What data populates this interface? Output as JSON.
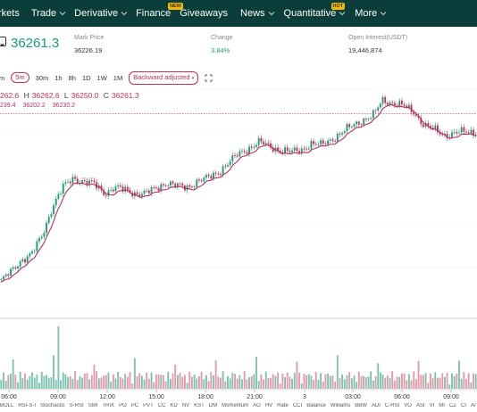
{
  "nav": {
    "items": [
      {
        "label": "rkets",
        "chevron": false,
        "badge": ""
      },
      {
        "label": "Trade",
        "chevron": true,
        "badge": ""
      },
      {
        "label": "Derivative",
        "chevron": true,
        "badge": ""
      },
      {
        "label": "Finance",
        "chevron": false,
        "badge": "NEW"
      },
      {
        "label": "Giveaways",
        "chevron": false,
        "badge": ""
      },
      {
        "label": "News",
        "chevron": true,
        "badge": ""
      },
      {
        "label": "Quantitative",
        "chevron": true,
        "badge": "HOT"
      },
      {
        "label": "More",
        "chevron": true,
        "badge": ""
      }
    ]
  },
  "ticker": {
    "price": "36261.3",
    "mark_price_label": "Mark Price",
    "mark_price": "36226.19",
    "change_label": "Change",
    "change": "3.84%",
    "open_interest_label": "Open Interest(USDT)",
    "open_interest": "19,446,874"
  },
  "toolbar": {
    "intervals": [
      "m",
      "5m",
      "30m",
      "1h",
      "8h",
      "1D",
      "1W",
      "1M"
    ],
    "active_interval": "5m",
    "adjust_label": "Backward adjusted",
    "expand_icon": "expand-icon"
  },
  "ohlc": {
    "open": "262.6",
    "high_key": "H",
    "high": "36262.6",
    "low_key": "L",
    "low": "36250.0",
    "close_key": "C",
    "close": "36261.3"
  },
  "ma": [
    "239.4",
    "36202.2",
    "36230.2"
  ],
  "time_axis": [
    "06:00",
    "09:00",
    "12:00",
    "15:00",
    "18:00",
    "21:00",
    "3",
    "03:00",
    "06:00",
    "09:00"
  ],
  "indicators": [
    "BOLL",
    "RSI-S-I",
    "Stochastic",
    "S-RSI",
    "SMI",
    "TRIX",
    "PO",
    "PC",
    "PVT",
    "CC",
    "KD",
    "NV",
    "KST",
    "DM",
    "Momentum",
    "AO",
    "HV",
    "Rate",
    "CCI",
    "Balance",
    "Williams",
    "BBW",
    "ADI",
    "C-RSI",
    "VO",
    "ASI",
    "VI",
    "MI",
    "CZ",
    "CI",
    "A/"
  ],
  "colors": {
    "nav_bg": "#0b3d3a",
    "up": "#1a9c74",
    "down": "#c6324f",
    "ma_line": "#b4306a",
    "price_line": "#c6324f"
  },
  "chart_data": {
    "type": "line",
    "series": [
      {
        "values": [
          36005,
          36020,
          36040,
          36050,
          36080,
          36130,
          36160,
          36175,
          36170,
          36165,
          36150,
          36160,
          36155,
          36150,
          36150,
          36158,
          36168,
          36162,
          36160,
          36170,
          36175,
          36185,
          36200,
          36215,
          36225,
          36235,
          36228,
          36222,
          36218,
          36222,
          36232,
          36230,
          36240,
          36250,
          36262,
          36272,
          36278,
          36305,
          36300,
          36295,
          36285,
          36263,
          36255,
          36247,
          36250,
          36252,
          36252
        ]
      }
    ]
  }
}
